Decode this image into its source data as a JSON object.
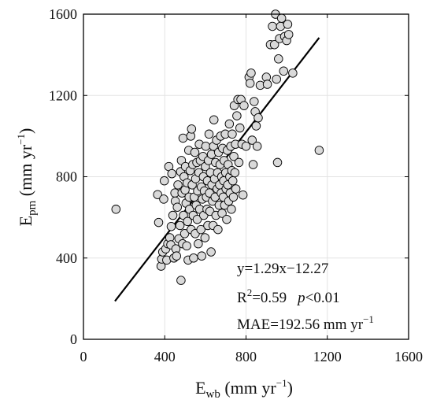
{
  "chart_data": {
    "type": "scatter",
    "xlabel": {
      "main": "E",
      "sub": "wb",
      "unit_before": " (mm yr",
      "sup": "−1",
      "unit_after": ")"
    },
    "ylabel": {
      "main": "E",
      "sub": "pm",
      "unit_before": " (mm yr",
      "sup": "−1",
      "unit_after": ")"
    },
    "xlim": [
      0,
      1600
    ],
    "ylim": [
      0,
      1600
    ],
    "xticks": [
      0,
      400,
      800,
      1200,
      1600
    ],
    "yticks": [
      0,
      400,
      800,
      1200,
      1600
    ],
    "grid": true,
    "marker_fill": "#d9d9d9",
    "marker_stroke": "#000000",
    "fit_line": {
      "slope": 1.29,
      "intercept": -12.27,
      "x_start": 155,
      "x_end": 1160,
      "color": "#000000"
    },
    "annotations": {
      "equation": "y=1.29x−12.27",
      "r2_prefix": "R",
      "r2_sup": "2",
      "r2_value": "=0.59",
      "p_symbol": "p",
      "p_value": "<0.01",
      "mae_text": "MAE=192.56 mm yr",
      "mae_sup": "−1"
    },
    "points": [
      [
        160,
        640
      ],
      [
        365,
        712
      ],
      [
        370,
        575
      ],
      [
        382,
        360
      ],
      [
        385,
        395
      ],
      [
        390,
        430
      ],
      [
        395,
        690
      ],
      [
        398,
        780
      ],
      [
        405,
        445
      ],
      [
        410,
        390
      ],
      [
        415,
        470
      ],
      [
        420,
        850
      ],
      [
        425,
        500
      ],
      [
        430,
        465
      ],
      [
        432,
        555
      ],
      [
        435,
        815
      ],
      [
        440,
        610
      ],
      [
        445,
        400
      ],
      [
        450,
        720
      ],
      [
        452,
        680
      ],
      [
        455,
        445
      ],
      [
        458,
        410
      ],
      [
        462,
        650
      ],
      [
        465,
        760
      ],
      [
        470,
        495
      ],
      [
        475,
        560
      ],
      [
        478,
        825
      ],
      [
        480,
        290
      ],
      [
        482,
        880
      ],
      [
        485,
        720
      ],
      [
        488,
        470
      ],
      [
        490,
        990
      ],
      [
        492,
        610
      ],
      [
        495,
        800
      ],
      [
        498,
        520
      ],
      [
        500,
        735
      ],
      [
        502,
        850
      ],
      [
        505,
        670
      ],
      [
        508,
        460
      ],
      [
        510,
        770
      ],
      [
        512,
        580
      ],
      [
        515,
        390
      ],
      [
        518,
        930
      ],
      [
        520,
        700
      ],
      [
        522,
        640
      ],
      [
        525,
        830
      ],
      [
        528,
        1000
      ],
      [
        530,
        540
      ],
      [
        532,
        1035
      ],
      [
        535,
        760
      ],
      [
        538,
        860
      ],
      [
        540,
        610
      ],
      [
        542,
        400
      ],
      [
        545,
        700
      ],
      [
        548,
        920
      ],
      [
        550,
        520
      ],
      [
        552,
        790
      ],
      [
        555,
        660
      ],
      [
        558,
        870
      ],
      [
        560,
        590
      ],
      [
        562,
        730
      ],
      [
        565,
        470
      ],
      [
        568,
        820
      ],
      [
        570,
        960
      ],
      [
        572,
        640
      ],
      [
        575,
        880
      ],
      [
        578,
        540
      ],
      [
        580,
        750
      ],
      [
        582,
        410
      ],
      [
        585,
        690
      ],
      [
        588,
        900
      ],
      [
        590,
        800
      ],
      [
        592,
        610
      ],
      [
        595,
        730
      ],
      [
        598,
        500
      ],
      [
        600,
        850
      ],
      [
        602,
        950
      ],
      [
        605,
        700
      ],
      [
        608,
        640
      ],
      [
        610,
        780
      ],
      [
        612,
        560
      ],
      [
        615,
        880
      ],
      [
        618,
        1010
      ],
      [
        620,
        720
      ],
      [
        622,
        630
      ],
      [
        625,
        820
      ],
      [
        628,
        430
      ],
      [
        630,
        910
      ],
      [
        632,
        760
      ],
      [
        635,
        680
      ],
      [
        638,
        560
      ],
      [
        640,
        950
      ],
      [
        642,
        1080
      ],
      [
        645,
        790
      ],
      [
        648,
        700
      ],
      [
        650,
        870
      ],
      [
        652,
        610
      ],
      [
        655,
        980
      ],
      [
        658,
        740
      ],
      [
        660,
        820
      ],
      [
        662,
        540
      ],
      [
        665,
        920
      ],
      [
        668,
        660
      ],
      [
        670,
        760
      ],
      [
        672,
        860
      ],
      [
        675,
        1000
      ],
      [
        678,
        720
      ],
      [
        680,
        800
      ],
      [
        682,
        620
      ],
      [
        685,
        940
      ],
      [
        688,
        700
      ],
      [
        690,
        780
      ],
      [
        692,
        880
      ],
      [
        695,
        660
      ],
      [
        698,
        1010
      ],
      [
        700,
        820
      ],
      [
        702,
        740
      ],
      [
        705,
        590
      ],
      [
        708,
        930
      ],
      [
        710,
        760
      ],
      [
        712,
        860
      ],
      [
        715,
        680
      ],
      [
        718,
        1060
      ],
      [
        720,
        800
      ],
      [
        722,
        720
      ],
      [
        725,
        950
      ],
      [
        728,
        640
      ],
      [
        730,
        830
      ],
      [
        732,
        1010
      ],
      [
        735,
        780
      ],
      [
        738,
        700
      ],
      [
        740,
        900
      ],
      [
        742,
        1150
      ],
      [
        745,
        820
      ],
      [
        748,
        960
      ],
      [
        750,
        740
      ],
      [
        755,
        1100
      ],
      [
        760,
        1180
      ],
      [
        765,
        870
      ],
      [
        770,
        1040
      ],
      [
        775,
        1180
      ],
      [
        780,
        960
      ],
      [
        785,
        710
      ],
      [
        790,
        1150
      ],
      [
        800,
        950
      ],
      [
        815,
        1290
      ],
      [
        820,
        1260
      ],
      [
        825,
        1310
      ],
      [
        830,
        980
      ],
      [
        835,
        860
      ],
      [
        840,
        1170
      ],
      [
        845,
        1120
      ],
      [
        850,
        1050
      ],
      [
        855,
        950
      ],
      [
        860,
        1090
      ],
      [
        870,
        1250
      ],
      [
        900,
        1290
      ],
      [
        905,
        1255
      ],
      [
        920,
        1450
      ],
      [
        930,
        1540
      ],
      [
        940,
        1450
      ],
      [
        945,
        1600
      ],
      [
        950,
        1280
      ],
      [
        955,
        870
      ],
      [
        960,
        1380
      ],
      [
        965,
        1480
      ],
      [
        970,
        1540
      ],
      [
        975,
        1580
      ],
      [
        985,
        1320
      ],
      [
        990,
        1490
      ],
      [
        1000,
        1470
      ],
      [
        1005,
        1550
      ],
      [
        1010,
        1500
      ],
      [
        1030,
        1310
      ],
      [
        1160,
        930
      ]
    ]
  }
}
